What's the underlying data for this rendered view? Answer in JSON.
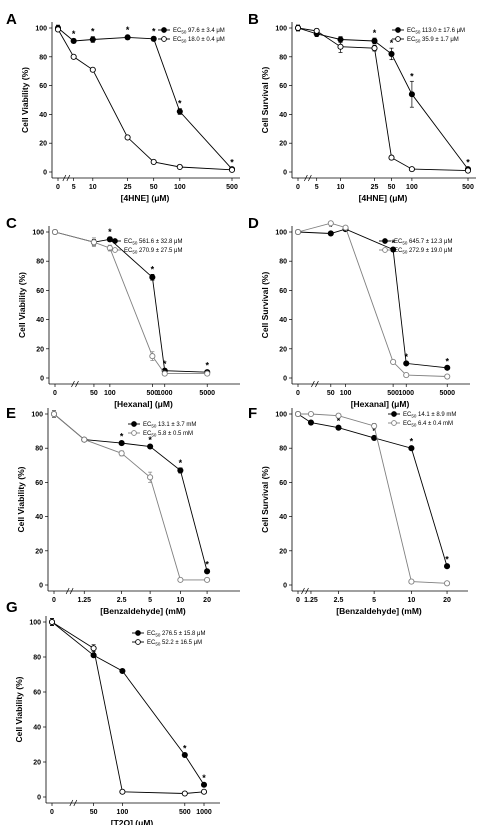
{
  "chart_data": [
    {
      "type": "line",
      "panel": "A",
      "xlabel": "[4HNE] (μM)",
      "ylabel": "Cell Viability (%)",
      "categories": [
        "0",
        "5",
        "10",
        "25",
        "50",
        "100",
        "500"
      ],
      "yticks": [
        "0",
        "20",
        "40",
        "60",
        "80",
        "100"
      ],
      "ylim": [
        0,
        100
      ],
      "series": [
        {
          "name": "EC50 97.6 ± 3.4 μM",
          "marker": "filled",
          "color": "#000000",
          "values": [
            100,
            91,
            92,
            93.5,
            92.5,
            42,
            2
          ],
          "errors": [
            2,
            1.5,
            2,
            1.5,
            1.5,
            2,
            1
          ],
          "significant": [
            false,
            true,
            true,
            true,
            true,
            true,
            true
          ]
        },
        {
          "name": "EC50 18.0 ± 0.4 μM",
          "marker": "open",
          "color": "#000000",
          "values": [
            99,
            80,
            71,
            24,
            7,
            3.5,
            1.5
          ],
          "errors": [
            1,
            1,
            1,
            1,
            1,
            1,
            1
          ],
          "significant": [
            false,
            false,
            false,
            false,
            false,
            false,
            false
          ]
        }
      ]
    },
    {
      "type": "line",
      "panel": "B",
      "xlabel": "[4HNE] (μM)",
      "ylabel": "Cell Survival (%)",
      "categories": [
        "0",
        "5",
        "10",
        "25",
        "50",
        "100",
        "500"
      ],
      "yticks": [
        "0",
        "20",
        "40",
        "60",
        "80",
        "100"
      ],
      "ylim": [
        0,
        100
      ],
      "series": [
        {
          "name": "EC50 113.0 ± 17.6 μM",
          "marker": "filled",
          "color": "#000000",
          "values": [
            100,
            96,
            92,
            91,
            82,
            54,
            2
          ],
          "errors": [
            2,
            2,
            2,
            2,
            4,
            9,
            1
          ],
          "significant": [
            false,
            false,
            false,
            true,
            true,
            true,
            true
          ]
        },
        {
          "name": "EC50 35.9 ± 1.7 μM",
          "marker": "open",
          "color": "#000000",
          "values": [
            100,
            98,
            87,
            86,
            10,
            2,
            1
          ],
          "errors": [
            2,
            1.5,
            4,
            2,
            1.5,
            1,
            1
          ],
          "significant": [
            false,
            false,
            false,
            false,
            false,
            false,
            false
          ]
        }
      ]
    },
    {
      "type": "line",
      "panel": "C",
      "xlabel": "[Hexanal] (μM)",
      "ylabel": "Cell Viability (%)",
      "categories": [
        "0",
        "50",
        "100",
        "500",
        "1000",
        "5000"
      ],
      "yticks": [
        "0",
        "20",
        "40",
        "60",
        "80",
        "100"
      ],
      "ylim": [
        0,
        100
      ],
      "series": [
        {
          "name": "EC50 561.6 ± 32.8 μM",
          "marker": "filled",
          "color": "#000000",
          "values": [
            100,
            93,
            95,
            69,
            5,
            4
          ],
          "errors": [
            1,
            2,
            1.5,
            2,
            1,
            1
          ],
          "significant": [
            false,
            false,
            true,
            true,
            true,
            true
          ]
        },
        {
          "name": "EC50 270.9 ± 27.5 μM",
          "marker": "open",
          "color": "#808080",
          "values": [
            100,
            93,
            89,
            15,
            3,
            3
          ],
          "errors": [
            1,
            3,
            2,
            3,
            1,
            1
          ],
          "significant": [
            false,
            false,
            false,
            false,
            false,
            false
          ]
        }
      ]
    },
    {
      "type": "line",
      "panel": "D",
      "xlabel": "[Hexanal] (μM)",
      "ylabel": "Cell Survival (%)",
      "categories": [
        "0",
        "50",
        "100",
        "500",
        "1000",
        "5000"
      ],
      "yticks": [
        "0",
        "20",
        "40",
        "60",
        "80",
        "100"
      ],
      "ylim": [
        0,
        100
      ],
      "series": [
        {
          "name": "EC50 645.7 ± 12.3 μM",
          "marker": "filled",
          "color": "#000000",
          "values": [
            100,
            99,
            102,
            88,
            10,
            7
          ],
          "errors": [
            1,
            1,
            1,
            1,
            1,
            1
          ],
          "significant": [
            false,
            true,
            false,
            true,
            true,
            true
          ]
        },
        {
          "name": "EC50 272.9 ± 19.0 μM",
          "marker": "open",
          "color": "#808080",
          "values": [
            100,
            106,
            103,
            11,
            2,
            1
          ],
          "errors": [
            1,
            1,
            1,
            1,
            1,
            1
          ],
          "significant": [
            false,
            false,
            false,
            false,
            false,
            false
          ]
        }
      ]
    },
    {
      "type": "line",
      "panel": "E",
      "xlabel": "[Benzaldehyde] (mM)",
      "ylabel": "Cell Viability (%)",
      "categories": [
        "0",
        "1.25",
        "2.5",
        "5",
        "10",
        "20"
      ],
      "yticks": [
        "0",
        "20",
        "40",
        "60",
        "80",
        "100"
      ],
      "ylim": [
        0,
        100
      ],
      "series": [
        {
          "name": "EC50 13.1 ± 3.7 mM",
          "marker": "filled",
          "color": "#000000",
          "values": [
            100,
            85,
            83,
            81,
            67,
            8
          ],
          "errors": [
            2,
            1,
            1,
            1,
            1.5,
            1
          ],
          "significant": [
            false,
            false,
            true,
            true,
            true,
            true
          ]
        },
        {
          "name": "EC50 5.8 ± 0.5 mM",
          "marker": "open",
          "color": "#808080",
          "values": [
            100,
            85,
            77,
            63,
            3,
            3
          ],
          "errors": [
            2,
            1,
            1.5,
            3,
            1,
            1
          ],
          "significant": [
            false,
            false,
            false,
            false,
            false,
            false
          ]
        }
      ]
    },
    {
      "type": "line",
      "panel": "F",
      "xlabel": "[Benzaldehyde] (mM)",
      "ylabel": "Cell Survival (%)",
      "categories": [
        "0",
        "1.25",
        "2.5",
        "5",
        "10",
        "20"
      ],
      "yticks": [
        "0",
        "20",
        "40",
        "60",
        "80",
        "100"
      ],
      "ylim": [
        0,
        100
      ],
      "series": [
        {
          "name": "EC50 14.1 ± 8.9 mM",
          "marker": "filled",
          "color": "#000000",
          "values": [
            100,
            95,
            92,
            86,
            80,
            11
          ],
          "errors": [
            1,
            1,
            1,
            1,
            1,
            1
          ],
          "significant": [
            false,
            true,
            true,
            true,
            true,
            true
          ]
        },
        {
          "name": "EC50 6.4 ± 0.4 mM",
          "marker": "open",
          "color": "#808080",
          "values": [
            100,
            100,
            99,
            93,
            2,
            1
          ],
          "errors": [
            1,
            1,
            1,
            1.5,
            1,
            1
          ],
          "significant": [
            false,
            false,
            false,
            false,
            false,
            false
          ]
        }
      ]
    },
    {
      "type": "line",
      "panel": "G",
      "xlabel": "[T2O] (μM)",
      "ylabel": "Cell Viability (%)",
      "categories": [
        "0",
        "50",
        "100",
        "500",
        "1000"
      ],
      "yticks": [
        "0",
        "20",
        "40",
        "60",
        "80",
        "100"
      ],
      "ylim": [
        0,
        100
      ],
      "series": [
        {
          "name": "EC50 276.5 ± 15.8 μM",
          "marker": "filled",
          "color": "#000000",
          "values": [
            100,
            81,
            72,
            24,
            7
          ],
          "errors": [
            2,
            1,
            1,
            1,
            1
          ],
          "significant": [
            false,
            false,
            false,
            true,
            true
          ]
        },
        {
          "name": "EC50 52.2 ± 16.5 μM",
          "marker": "open",
          "color": "#000000",
          "values": [
            100,
            85,
            3,
            2,
            3
          ],
          "errors": [
            2,
            2,
            1,
            1,
            1
          ],
          "significant": [
            false,
            false,
            false,
            false,
            false
          ]
        }
      ]
    }
  ]
}
